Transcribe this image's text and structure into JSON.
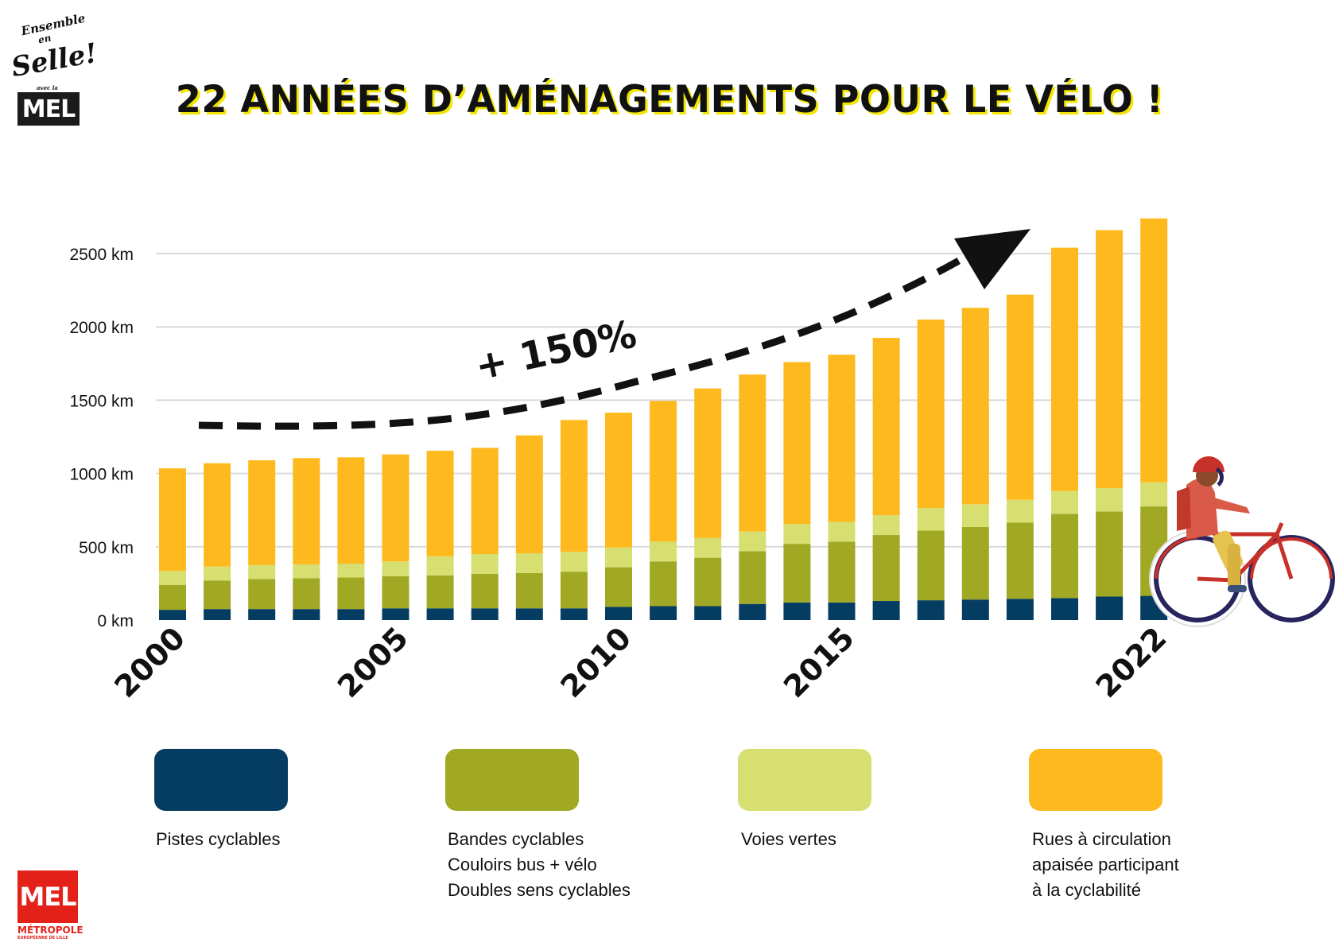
{
  "branding": {
    "top_logo_line1": "Ensemble",
    "top_logo_line2": "en",
    "top_logo_line3": "Selle!",
    "top_logo_line4": "avec la",
    "top_logo_box": "MEL",
    "bottom_logo_box": "MEL",
    "bottom_logo_line1": "MÉTROPOLE",
    "bottom_logo_line2": "EUROPÉENNE DE LILLE"
  },
  "title": "22 ANNÉES D’AMÉNAGEMENTS POUR LE VÉLO !",
  "annotation": "+ 150%",
  "colors": {
    "pistes": "#053c61",
    "bandes": "#a0a824",
    "voies": "#d6df6f",
    "rues": "#fdb91e",
    "gridline": "#d9d9d9",
    "text": "#111111"
  },
  "chart_data": {
    "type": "bar",
    "stacked": true,
    "title": "22 ANNÉES D’AMÉNAGEMENTS POUR LE VÉLO !",
    "xlabel": "",
    "ylabel": "",
    "ylim": [
      0,
      2500
    ],
    "y_ticks": [
      0,
      500,
      1000,
      1500,
      2000,
      2500
    ],
    "y_tick_labels": [
      "0 km",
      "500 km",
      "1000 km",
      "1500 km",
      "2000 km",
      "2500 km"
    ],
    "categories": [
      "2000",
      "2001",
      "2002",
      "2003",
      "2004",
      "2005",
      "2006",
      "2007",
      "2008",
      "2009",
      "2010",
      "2011",
      "2012",
      "2013",
      "2014",
      "2015",
      "2016",
      "2017",
      "2018",
      "2019",
      "2020",
      "2021",
      "2022"
    ],
    "x_tick_labels": [
      "2000",
      "2005",
      "2010",
      "2015",
      "2022"
    ],
    "series": [
      {
        "name": "Pistes cyclables",
        "values": [
          70,
          75,
          75,
          75,
          75,
          80,
          80,
          80,
          80,
          80,
          90,
          95,
          95,
          110,
          120,
          120,
          130,
          135,
          140,
          145,
          150,
          160,
          165
        ]
      },
      {
        "name": "Bandes cyclables / Couloirs bus + vélo / Doubles sens cyclables",
        "values": [
          170,
          195,
          205,
          210,
          215,
          220,
          225,
          235,
          240,
          250,
          270,
          305,
          330,
          360,
          400,
          415,
          450,
          475,
          495,
          520,
          575,
          580,
          610
        ]
      },
      {
        "name": "Voies vertes",
        "values": [
          95,
          95,
          95,
          95,
          95,
          100,
          130,
          135,
          135,
          135,
          135,
          135,
          135,
          135,
          135,
          135,
          135,
          155,
          155,
          155,
          155,
          160,
          165
        ]
      },
      {
        "name": "Rues à circulation apaisée participant à la cyclabilité",
        "values": [
          700,
          705,
          715,
          725,
          725,
          730,
          720,
          725,
          805,
          900,
          920,
          960,
          1020,
          1070,
          1105,
          1140,
          1210,
          1285,
          1340,
          1400,
          1660,
          1760,
          1800
        ]
      }
    ],
    "annotation_text": "+ 150%",
    "legend": [
      {
        "label_lines": [
          "Pistes cyclables"
        ]
      },
      {
        "label_lines": [
          "Bandes cyclables",
          "Couloirs bus + vélo",
          "Doubles sens cyclables"
        ]
      },
      {
        "label_lines": [
          "Voies vertes"
        ]
      },
      {
        "label_lines": [
          "Rues à circulation",
          "apaisée participant",
          "à la cyclabilité"
        ]
      }
    ]
  }
}
